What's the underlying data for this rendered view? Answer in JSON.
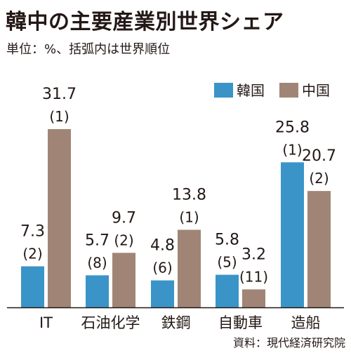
{
  "title": "韓中の主要産業別世界シェア",
  "subtitle": "単位：%、括弧内は世界順位",
  "source": "資料：現代経済研究院",
  "colors": {
    "korea": "#3b94c8",
    "china": "#a08576",
    "axis": "#231815"
  },
  "chart_data": {
    "type": "bar",
    "categories": [
      "IT",
      "石油化学",
      "鉄鋼",
      "自動車",
      "造船"
    ],
    "series": [
      {
        "name": "韓国",
        "values": [
          7.3,
          5.7,
          4.8,
          5.8,
          25.8
        ],
        "ranks": [
          "(2)",
          "(8)",
          "(6)",
          "(5)",
          "(1)"
        ]
      },
      {
        "name": "中国",
        "values": [
          31.7,
          9.7,
          13.8,
          3.2,
          20.7
        ],
        "ranks": [
          "(1)",
          "(2)",
          "(1)",
          "(11)",
          "(2)"
        ]
      }
    ],
    "value_labels": [
      [
        "7.3",
        "5.7",
        "4.8",
        "5.8",
        "25.8"
      ],
      [
        "31.7",
        "9.7",
        "13.8",
        "3.2",
        "20.7"
      ]
    ],
    "ylim": [
      0,
      31.7
    ],
    "legend": "top-right",
    "grid": false
  }
}
